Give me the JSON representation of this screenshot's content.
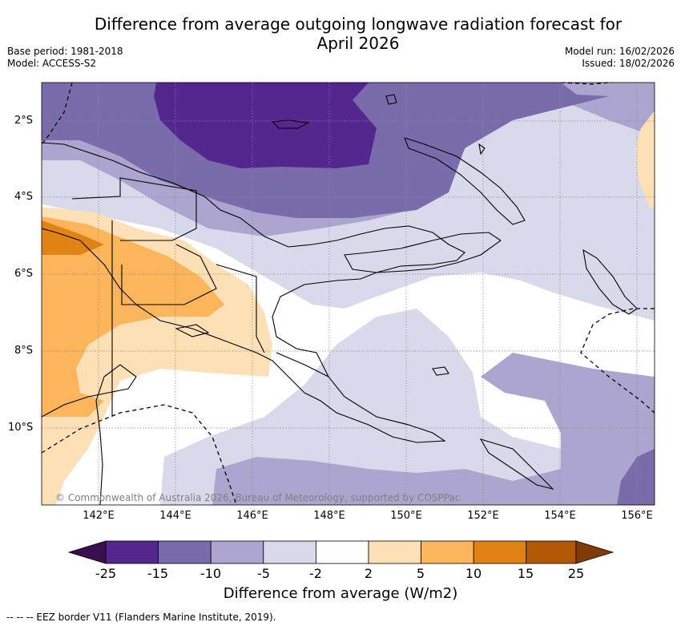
{
  "title": {
    "line1": "Difference from average outgoing longwave radiation forecast for",
    "line2": "April 2026"
  },
  "meta": {
    "base_period": "Base period: 1981-2018",
    "model": "Model: ACCESS-S2",
    "model_run": "Model run: 16/02/2026",
    "issued": "Issued: 18/02/2026"
  },
  "axes": {
    "lat_labels": [
      "2°S",
      "4°S",
      "6°S",
      "8°S",
      "10°S"
    ],
    "lon_labels": [
      "142°E",
      "144°E",
      "146°E",
      "148°E",
      "150°E",
      "152°E",
      "154°E",
      "156°E"
    ]
  },
  "copyright": "© Commonwealth of Australia 2026, Bureau of Meteorology, supported by COSPPac",
  "colorbar": {
    "title": "Difference from average (W/m2)",
    "tick_labels": [
      "-25",
      "-15",
      "-10",
      "-5",
      "-2",
      "2",
      "5",
      "10",
      "15",
      "25"
    ],
    "colors": {
      "below_min": "#3b0f4f",
      "lt_m15": "#54278f",
      "m15_m10": "#7a6caa",
      "m10_m5": "#aba5cf",
      "m5_m2": "#d8d9ea",
      "m2_2": "#ffffff",
      "p2_5": "#fee0b6",
      "p5_10": "#fdb55c",
      "p10_15": "#e08214",
      "p15_25": "#b35806",
      "above_max": "#7f3b08"
    }
  },
  "footnote": "--  --  -- EEZ border V11 (Flanders Marine Institute, 2019)."
}
